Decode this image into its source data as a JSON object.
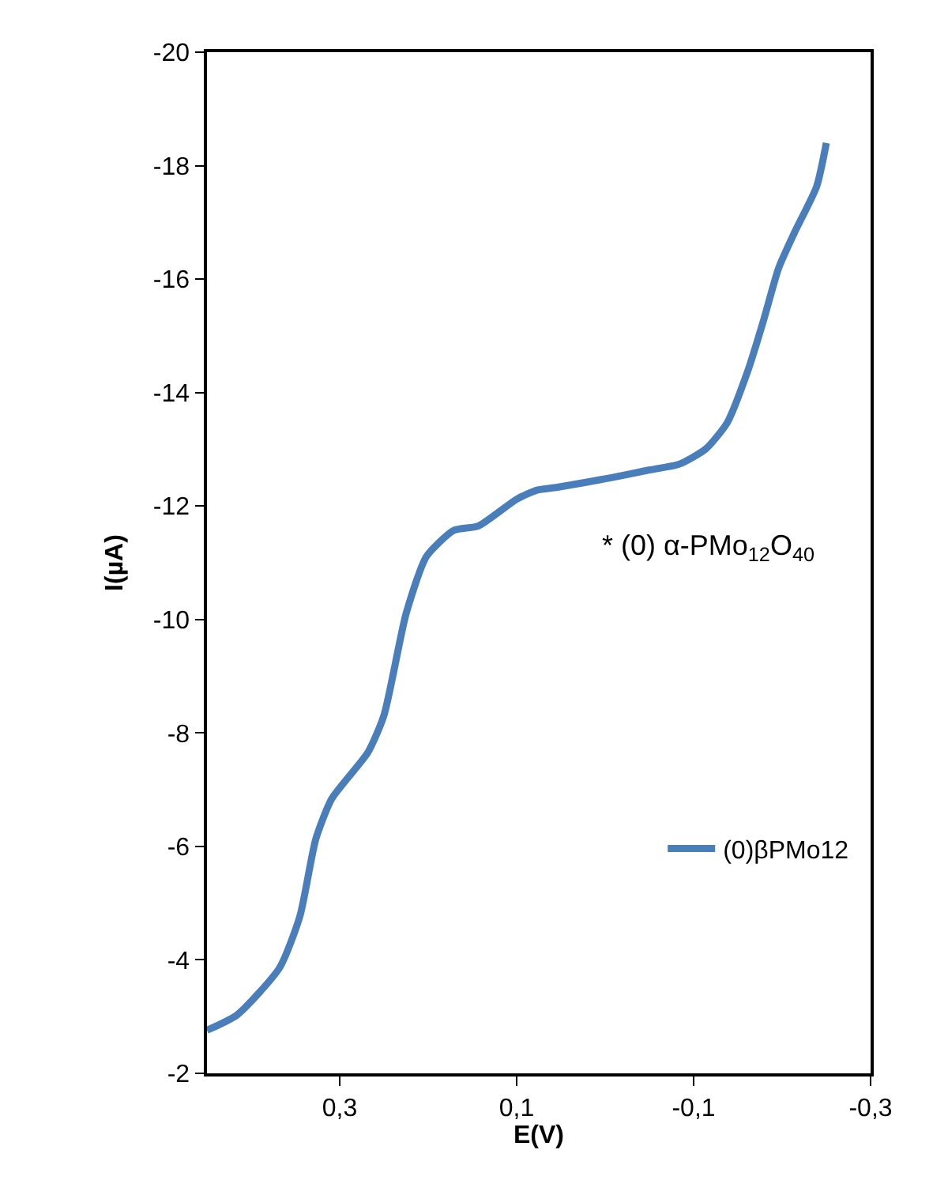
{
  "chart_data": {
    "type": "line",
    "xlabel": "E(V)",
    "ylabel": "I(µA)",
    "x": [
      0.45,
      0.416,
      0.368,
      0.345,
      0.327,
      0.309,
      0.268,
      0.25,
      0.225,
      0.202,
      0.171,
      0.143,
      0.1,
      0.077,
      0.054,
      -0.007,
      -0.048,
      -0.084,
      -0.114,
      -0.138,
      -0.161,
      -0.179,
      -0.196,
      -0.214,
      -0.239,
      -0.25
    ],
    "series": [
      {
        "name": "(0)βPMo12",
        "color": "#4a7ebb",
        "values": [
          -2.76,
          -3.03,
          -3.86,
          -4.77,
          -6.13,
          -6.84,
          -7.66,
          -8.31,
          -10.1,
          -11.11,
          -11.57,
          -11.65,
          -12.12,
          -12.28,
          -12.33,
          -12.5,
          -12.63,
          -12.74,
          -13.01,
          -13.47,
          -14.37,
          -15.27,
          -16.19,
          -16.82,
          -17.63,
          -18.4
        ]
      }
    ],
    "xlim": [
      0.45,
      -0.3
    ],
    "xticks": [
      {
        "value": 0.3,
        "label": "0,3"
      },
      {
        "value": 0.1,
        "label": "0,1"
      },
      {
        "value": -0.1,
        "label": "-0,1"
      },
      {
        "value": -0.3,
        "label": "-0,3"
      }
    ],
    "ylim": [
      -2,
      -20
    ],
    "yticks": [
      -2,
      -4,
      -6,
      -8,
      -10,
      -12,
      -14,
      -16,
      -18,
      -20
    ],
    "annotations": [
      "* (0) α-PMo$_{12}$O$_{40}$"
    ],
    "legend": "right",
    "marker": "none",
    "line_style": "solid"
  }
}
